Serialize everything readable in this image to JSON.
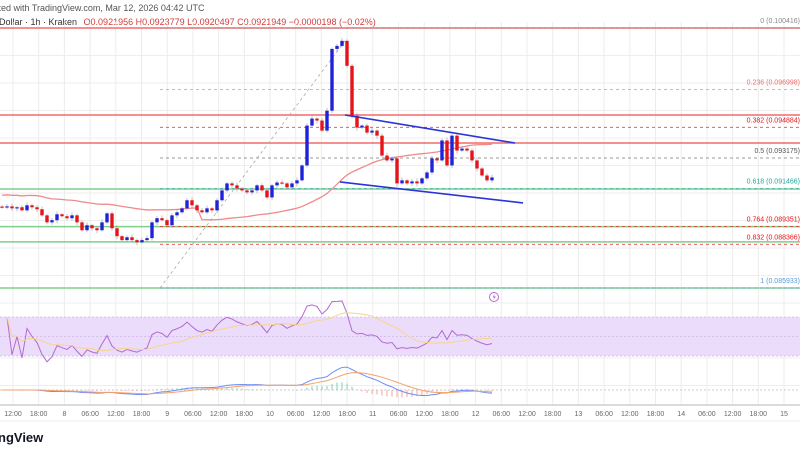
{
  "header": {
    "published": "sted with TradingView.com, Mar 12, 2026 04:42 UTC",
    "symbol": ". Dollar · 1h · Kraken",
    "ohlc": "O0.0921956 H0.0923779 L0.0920497 C0.0921949 −0.0000198 (−0.02%)"
  },
  "logo_text": "ngView",
  "colors": {
    "up": "#1e22d8",
    "down": "#e5141a",
    "resistance": "#f26b6b",
    "support": "#7fcf8a",
    "trendline": "#2b35d6",
    "ma": "#f08a8a",
    "rsi": "#b26ad1",
    "rsi_band": "#ecdcfb",
    "macd": "#6e8ef5",
    "signal": "#f5a36e"
  },
  "chart_data": {
    "type": "candlestick",
    "interval": "1h",
    "closes": [
      0.09043,
      0.09048,
      0.09037,
      0.09043,
      0.09026,
      0.09054,
      0.09043,
      0.09032,
      0.08998,
      0.08959,
      0.08971,
      0.09004,
      0.08993,
      0.08982,
      0.08998,
      0.08959,
      0.08915,
      0.08943,
      0.08926,
      0.08915,
      0.08959,
      0.09009,
      0.08926,
      0.08882,
      0.0886,
      0.08876,
      0.0886,
      0.08848,
      0.0886,
      0.08871,
      0.08959,
      0.08982,
      0.08971,
      0.08943,
      0.08998,
      0.09015,
      0.09037,
      0.09082,
      0.09054,
      0.09026,
      0.09015,
      0.09037,
      0.09026,
      0.09082,
      0.09137,
      0.09176,
      0.09165,
      0.09148,
      0.09137,
      0.09126,
      0.09137,
      0.09165,
      0.09137,
      0.09098,
      0.09165,
      0.09181,
      0.09176,
      0.09154,
      0.09176,
      0.09193,
      0.09276,
      0.09498,
      0.09537,
      0.09526,
      0.0947,
      0.09581,
      0.09925,
      0.09942,
      0.0997,
      0.09831,
      0.09553,
      0.09487,
      0.09498,
      0.09459,
      0.0947,
      0.09442,
      0.09331,
      0.09304,
      0.09315,
      0.09176,
      0.09193,
      0.09176,
      0.09187,
      0.09176,
      0.09204,
      0.09237,
      0.09315,
      0.09304,
      0.09415,
      0.09276,
      0.09442,
      0.09359,
      0.0937,
      0.09359,
      0.09304,
      0.09259,
      0.0922,
      0.09193,
      0.09209
    ],
    "fib_levels": [
      {
        "level": "0",
        "price": 0.100416,
        "label": "0 (0.100416)",
        "color": "#888888"
      },
      {
        "level": "0.236",
        "price": 0.096998,
        "label": "0.236 (0.096998)",
        "color": "#f26b6b"
      },
      {
        "level": "0.382",
        "price": 0.094884,
        "label": "0.382 (0.094884)",
        "color": "#e5141a"
      },
      {
        "level": "0.5",
        "price": 0.093175,
        "label": "0.5 (0.093175)",
        "color": "#555555"
      },
      {
        "level": "0.618",
        "price": 0.091466,
        "label": "0.618 (0.091466)",
        "color": "#26a69a"
      },
      {
        "level": "0.764",
        "price": 0.089351,
        "label": "0.764 (0.089351)",
        "color": "#e5141a"
      },
      {
        "level": "0.832",
        "price": 0.088366,
        "label": "0.832 (0.088366)",
        "color": "#e5141a"
      },
      {
        "level": "1",
        "price": 0.085933,
        "label": "1 (0.085933)",
        "color": "#5b9bd5"
      }
    ],
    "resistance_lines": [
      0.100416,
      0.09557,
      0.09401
    ],
    "support_lines": [
      0.09145,
      0.08935,
      0.0885,
      0.085933
    ],
    "trendlines": [
      {
        "from": [
          68.6,
          0.09557
        ],
        "to": [
          102.6,
          0.09401
        ]
      },
      {
        "from": [
          67.6,
          0.09184
        ],
        "to": [
          104.2,
          0.09067
        ]
      }
    ],
    "fib_anchor": {
      "from": [
        31.6,
        0.085933
      ],
      "to": [
        68.6,
        0.0997
      ]
    },
    "x_tick_labels": [
      "12:00",
      "18:00",
      "8",
      "06:00",
      "12:00",
      "18:00",
      "9",
      "06:00",
      "12:00",
      "18:00",
      "10",
      "06:00",
      "12:00",
      "18:00",
      "11",
      "06:00",
      "12:00",
      "18:00",
      "12",
      "06:00",
      "12:00",
      "18:00",
      "13",
      "06:00",
      "12:00",
      "18:00",
      "14",
      "06:00",
      "12:00",
      "18:00",
      "15"
    ],
    "indicators": [
      "moving-average",
      "RSI",
      "MACD"
    ]
  }
}
